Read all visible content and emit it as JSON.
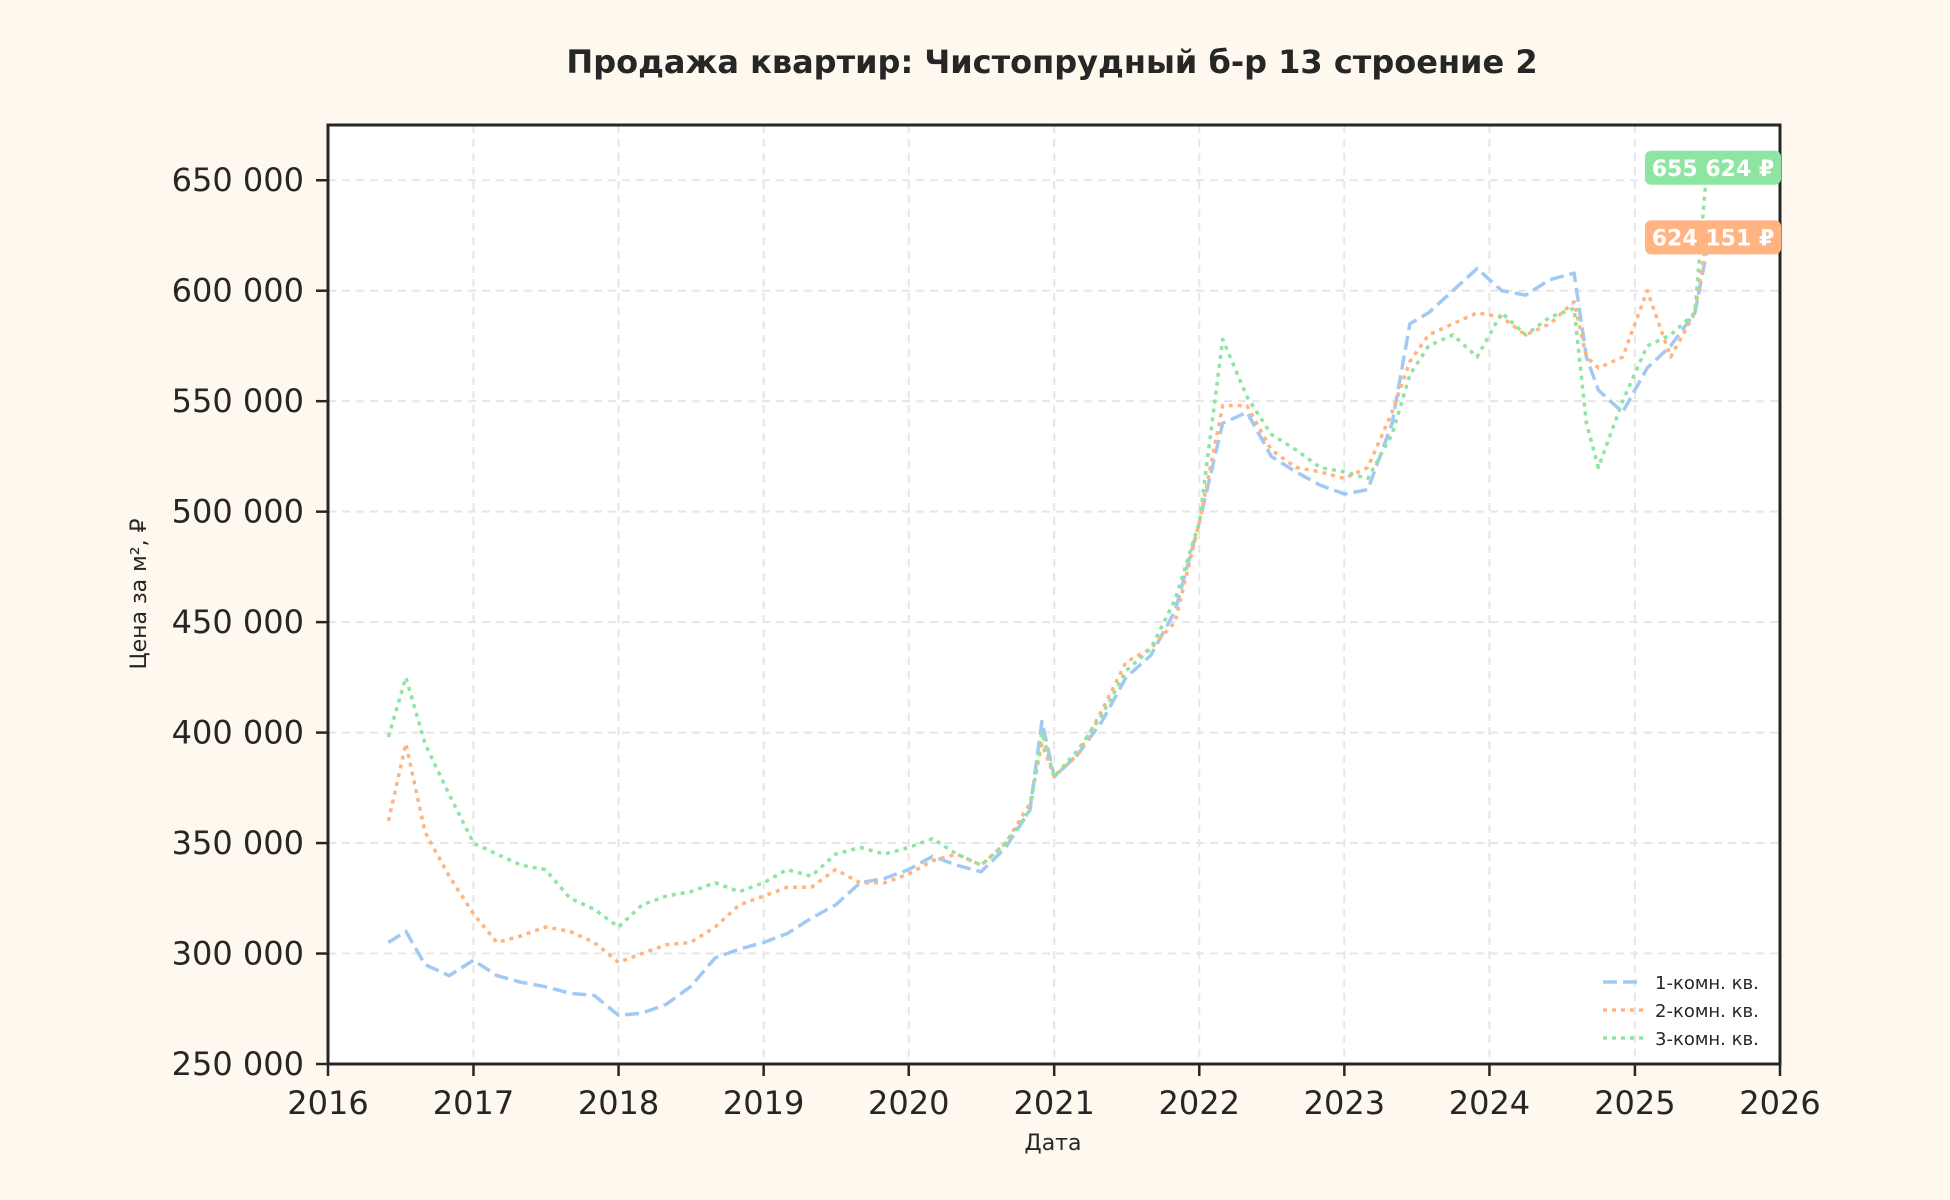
{
  "chart_data": {
    "type": "line",
    "title": "Продажа квартир: Чистопрудный б-р 13 строение 2",
    "xlabel": "Дата",
    "ylabel": "Цена за м², ₽",
    "xlim": [
      "2016-01-01",
      "2026-01-01"
    ],
    "ylim": [
      250000,
      675000
    ],
    "x_ticks": [
      "2016",
      "2017",
      "2018",
      "2019",
      "2020",
      "2021",
      "2022",
      "2023",
      "2024",
      "2025",
      "2026"
    ],
    "y_ticks": [
      250000,
      300000,
      350000,
      400000,
      450000,
      500000,
      550000,
      600000,
      650000
    ],
    "y_tick_labels": [
      "250 000",
      "300 000",
      "350 000",
      "400 000",
      "450 000",
      "500 000",
      "550 000",
      "600 000",
      "650 000"
    ],
    "grid": true,
    "legend_position": "bottom-right",
    "series": [
      {
        "name": "1-комн. кв.",
        "color": "#a1c9f4",
        "dash": "dashed",
        "x": [
          "2016-06-01",
          "2016-07-15",
          "2016-09-01",
          "2016-11-01",
          "2017-01-01",
          "2017-03-01",
          "2017-05-01",
          "2017-07-01",
          "2017-09-01",
          "2017-11-01",
          "2018-01-01",
          "2018-03-01",
          "2018-05-01",
          "2018-07-01",
          "2018-09-01",
          "2018-11-01",
          "2019-01-01",
          "2019-03-01",
          "2019-05-01",
          "2019-07-01",
          "2019-09-01",
          "2019-11-01",
          "2020-01-01",
          "2020-03-01",
          "2020-05-01",
          "2020-07-01",
          "2020-09-01",
          "2020-11-01",
          "2020-12-01",
          "2021-01-01",
          "2021-03-01",
          "2021-05-01",
          "2021-07-01",
          "2021-09-01",
          "2021-11-01",
          "2022-01-01",
          "2022-03-01",
          "2022-05-01",
          "2022-07-01",
          "2022-09-01",
          "2022-11-01",
          "2023-01-01",
          "2023-03-01",
          "2023-05-01",
          "2023-06-15",
          "2023-08-01",
          "2023-10-01",
          "2023-12-01",
          "2024-02-01",
          "2024-04-01",
          "2024-06-01",
          "2024-08-01",
          "2024-09-01",
          "2024-10-01",
          "2024-12-01",
          "2025-02-01",
          "2025-04-01",
          "2025-06-01",
          "2025-07-01"
        ],
        "values": [
          305000,
          310000,
          295000,
          290000,
          297000,
          290000,
          287000,
          285000,
          282000,
          281000,
          272000,
          273000,
          277000,
          285000,
          298000,
          302000,
          305000,
          309000,
          316000,
          322000,
          332000,
          334000,
          338000,
          344000,
          340000,
          337000,
          348000,
          365000,
          405000,
          380000,
          390000,
          405000,
          425000,
          435000,
          455000,
          495000,
          540000,
          545000,
          525000,
          518000,
          512000,
          508000,
          510000,
          540000,
          585000,
          590000,
          600000,
          610000,
          600000,
          598000,
          605000,
          608000,
          570000,
          555000,
          545000,
          565000,
          575000,
          590000,
          618000
        ]
      },
      {
        "name": "2-комн. кв.",
        "color": "#ffb482",
        "dash": "dotted",
        "x": [
          "2016-06-01",
          "2016-07-15",
          "2016-09-01",
          "2016-11-01",
          "2017-01-01",
          "2017-03-01",
          "2017-05-01",
          "2017-07-01",
          "2017-09-01",
          "2017-11-01",
          "2018-01-01",
          "2018-03-01",
          "2018-05-01",
          "2018-07-01",
          "2018-09-01",
          "2018-11-01",
          "2019-01-01",
          "2019-03-01",
          "2019-05-01",
          "2019-07-01",
          "2019-09-01",
          "2019-11-01",
          "2020-01-01",
          "2020-03-01",
          "2020-05-01",
          "2020-07-01",
          "2020-09-01",
          "2020-11-01",
          "2020-12-01",
          "2021-01-01",
          "2021-03-01",
          "2021-05-01",
          "2021-07-01",
          "2021-09-01",
          "2021-11-01",
          "2022-01-01",
          "2022-03-01",
          "2022-05-01",
          "2022-07-01",
          "2022-09-01",
          "2022-11-01",
          "2023-01-01",
          "2023-03-01",
          "2023-05-01",
          "2023-06-15",
          "2023-08-01",
          "2023-10-01",
          "2023-12-01",
          "2024-02-01",
          "2024-04-01",
          "2024-06-01",
          "2024-08-01",
          "2024-09-01",
          "2024-10-01",
          "2024-12-01",
          "2025-02-01",
          "2025-04-01",
          "2025-06-01",
          "2025-07-01"
        ],
        "values": [
          360000,
          395000,
          355000,
          335000,
          318000,
          305000,
          308000,
          312000,
          310000,
          305000,
          296000,
          300000,
          304000,
          305000,
          312000,
          322000,
          326000,
          330000,
          330000,
          338000,
          332000,
          332000,
          336000,
          342000,
          345000,
          340000,
          350000,
          368000,
          395000,
          380000,
          390000,
          410000,
          432000,
          438000,
          450000,
          495000,
          548000,
          548000,
          528000,
          520000,
          518000,
          515000,
          520000,
          545000,
          568000,
          580000,
          585000,
          590000,
          588000,
          580000,
          585000,
          595000,
          570000,
          565000,
          570000,
          600000,
          570000,
          590000,
          624151
        ]
      },
      {
        "name": "3-комн. кв.",
        "color": "#8de5a1",
        "dash": "dotted",
        "x": [
          "2016-06-01",
          "2016-07-15",
          "2016-09-01",
          "2016-11-01",
          "2017-01-01",
          "2017-03-01",
          "2017-05-01",
          "2017-07-01",
          "2017-09-01",
          "2017-11-01",
          "2018-01-01",
          "2018-03-01",
          "2018-05-01",
          "2018-07-01",
          "2018-09-01",
          "2018-11-01",
          "2019-01-01",
          "2019-03-01",
          "2019-05-01",
          "2019-07-01",
          "2019-09-01",
          "2019-11-01",
          "2020-01-01",
          "2020-03-01",
          "2020-05-01",
          "2020-07-01",
          "2020-09-01",
          "2020-11-01",
          "2020-12-01",
          "2021-01-01",
          "2021-03-01",
          "2021-05-01",
          "2021-07-01",
          "2021-09-01",
          "2021-11-01",
          "2022-01-01",
          "2022-03-01",
          "2022-05-01",
          "2022-07-01",
          "2022-09-01",
          "2022-11-01",
          "2023-01-01",
          "2023-03-01",
          "2023-05-01",
          "2023-06-15",
          "2023-08-01",
          "2023-10-01",
          "2023-12-01",
          "2024-02-01",
          "2024-04-01",
          "2024-06-01",
          "2024-08-01",
          "2024-09-01",
          "2024-10-01",
          "2024-12-01",
          "2025-02-01",
          "2025-04-01",
          "2025-06-01",
          "2025-07-01"
        ],
        "values": [
          398000,
          425000,
          395000,
          372000,
          350000,
          345000,
          340000,
          338000,
          325000,
          320000,
          312000,
          322000,
          326000,
          328000,
          332000,
          328000,
          332000,
          338000,
          335000,
          345000,
          348000,
          345000,
          348000,
          352000,
          345000,
          340000,
          350000,
          365000,
          400000,
          380000,
          392000,
          408000,
          428000,
          438000,
          460000,
          495000,
          578000,
          552000,
          535000,
          528000,
          520000,
          518000,
          515000,
          535000,
          562000,
          575000,
          580000,
          570000,
          590000,
          580000,
          588000,
          592000,
          540000,
          520000,
          550000,
          575000,
          580000,
          590000,
          655624
        ]
      }
    ],
    "annotations": [
      {
        "text": "655 624 ₽",
        "series": "3-комн. кв."
      },
      {
        "text": "624 151 ₽",
        "series": "2-комн. кв."
      }
    ]
  }
}
